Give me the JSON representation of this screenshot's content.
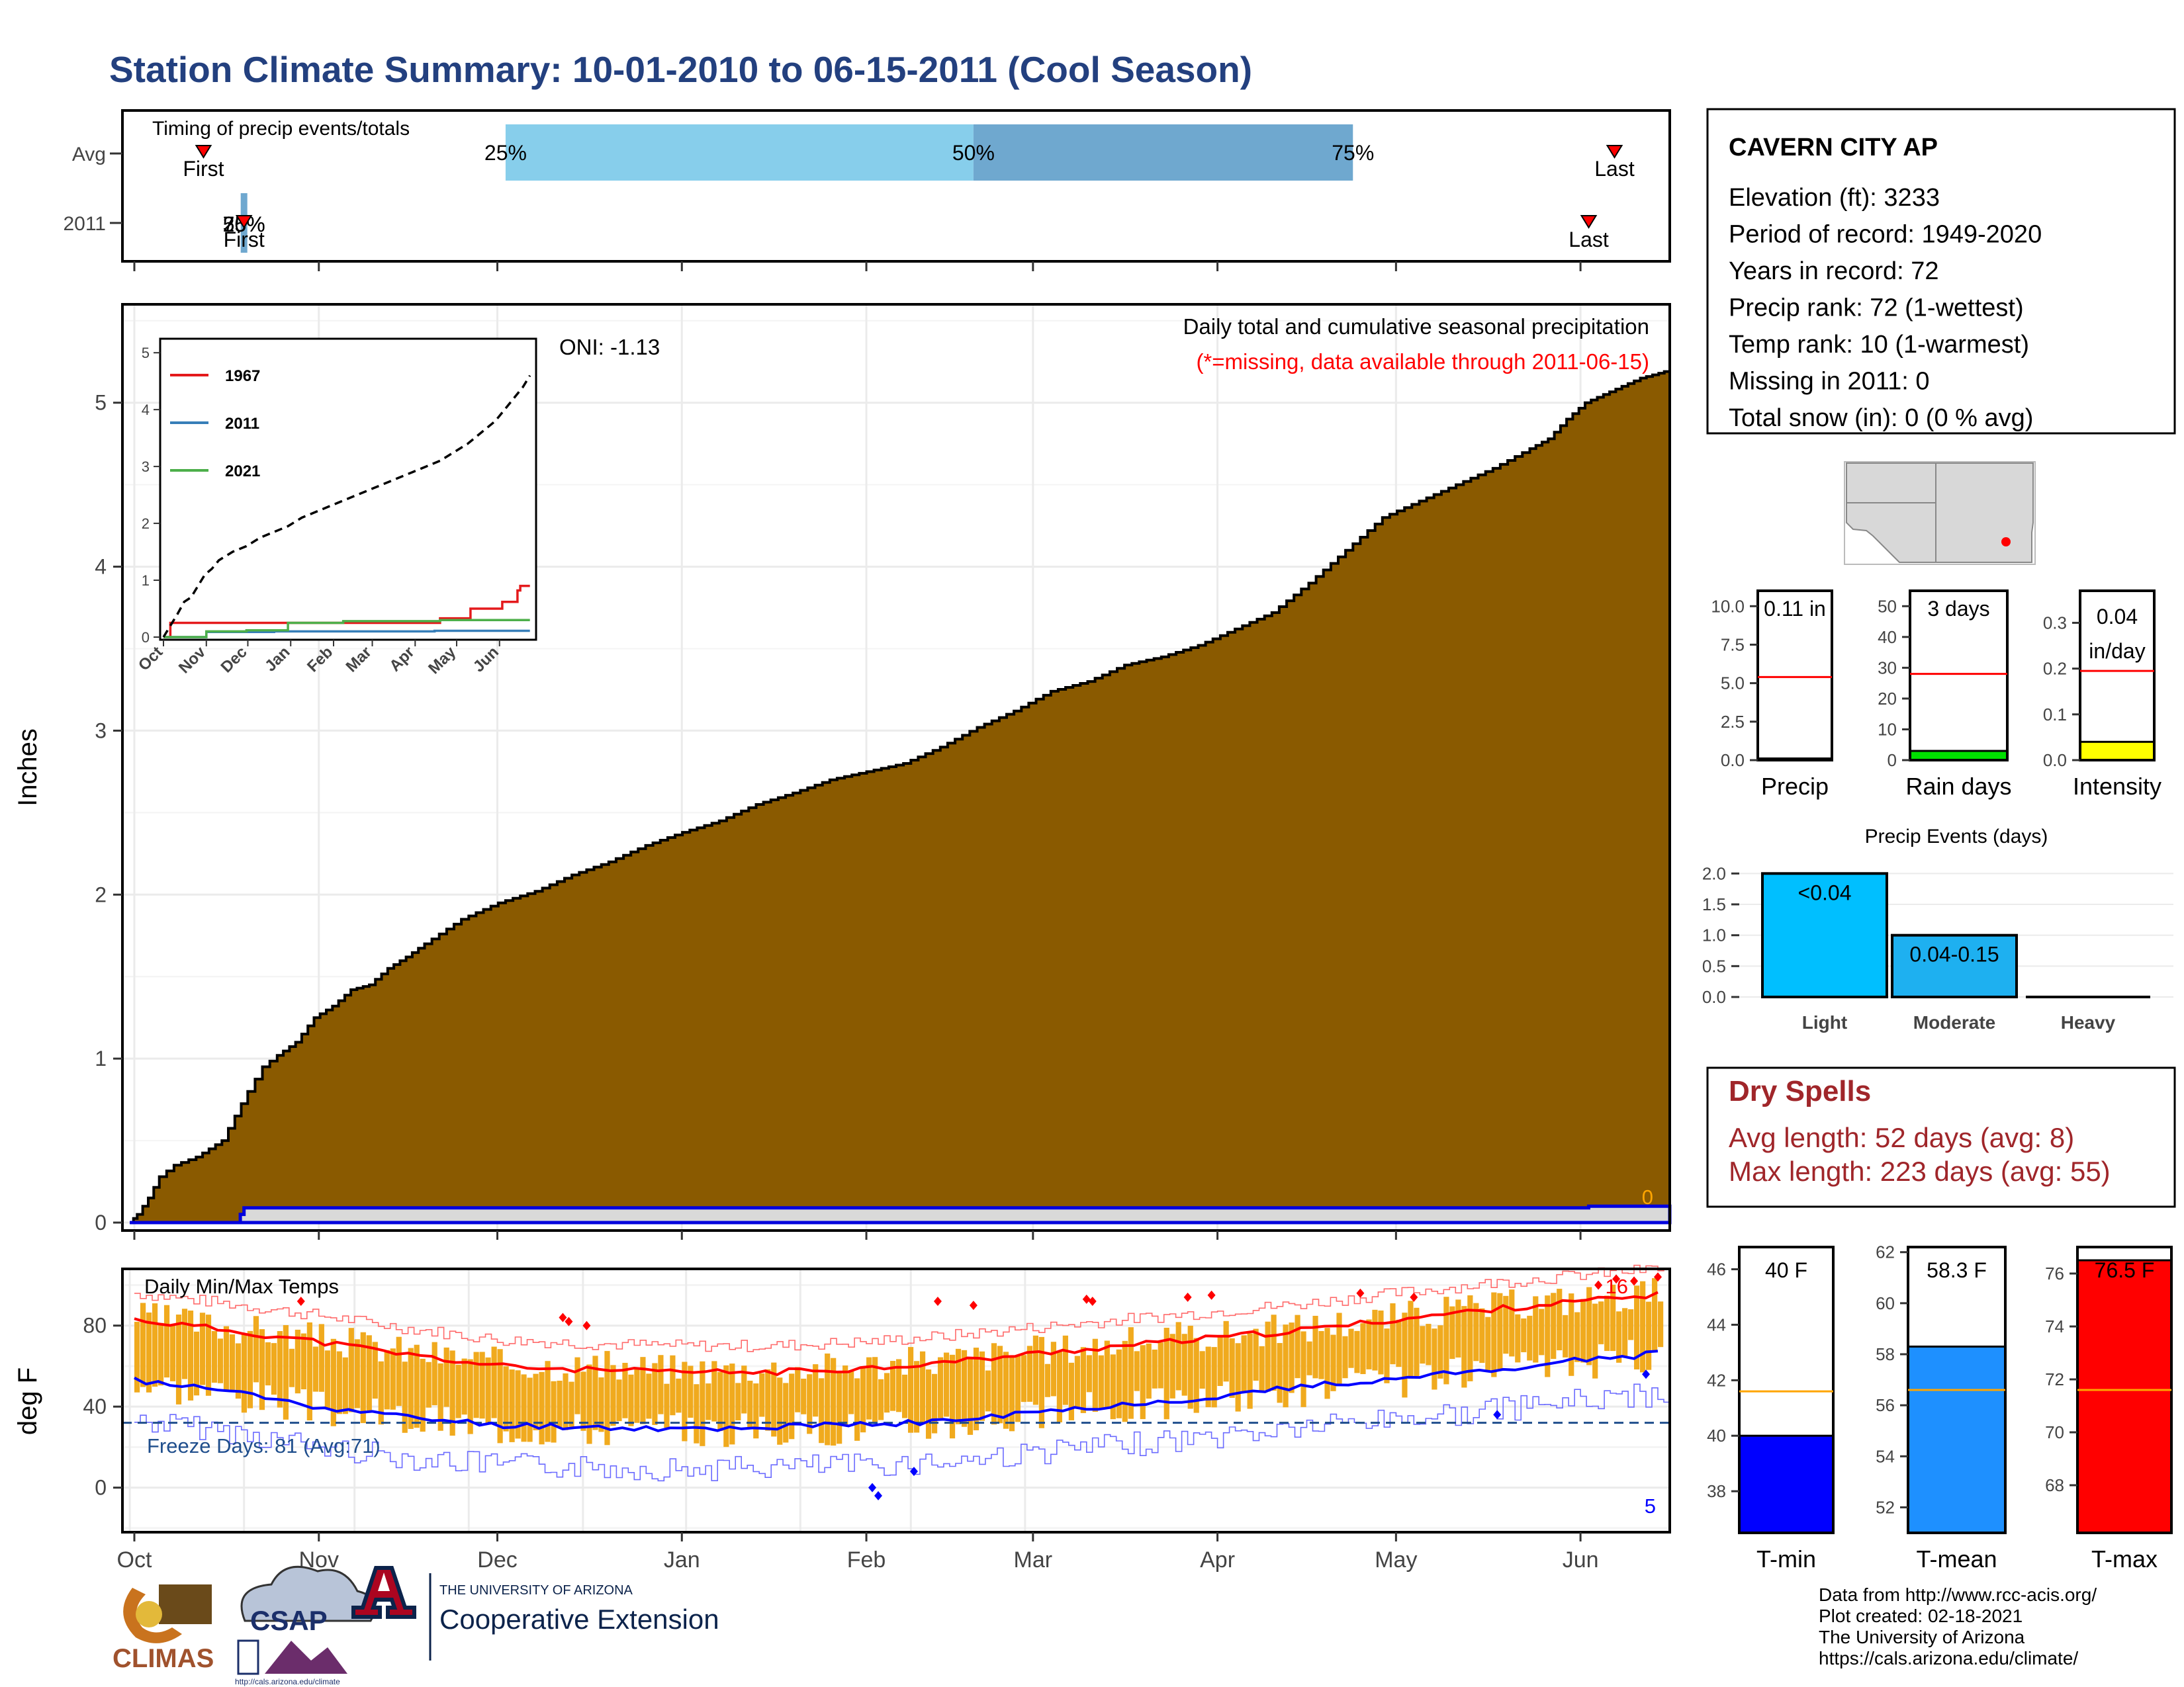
{
  "page": {
    "title": "Station Climate Summary: 10-01-2010 to 06-15-2011 (Cool Season)",
    "footer": [
      "Data from http://www.rcc-acis.org/",
      "Plot created: 02-18-2021",
      "The University of Arizona",
      "https://cals.arizona.edu/climate/"
    ]
  },
  "logos": {
    "climas": "CLIMAS",
    "csap": "CSAP",
    "csap_url": "http://cals.arizona.edu/climate",
    "ua_line1": "THE UNIVERSITY OF ARIZONA",
    "ua_line2": "Cooperative Extension"
  },
  "station_info": {
    "name": "CAVERN CITY AP",
    "lines": [
      "Elevation (ft): 3233",
      "Period of record: 1949-2020",
      "Years in record: 72",
      "Precip rank: 72 (1-wettest)",
      "Temp rank: 10 (1-warmest)",
      "Missing in 2011: 0",
      "Total snow (in): 0 (0 % avg)"
    ]
  },
  "dry_spells": {
    "title": "Dry Spells",
    "avg": "Avg length: 52 days (avg: 8)",
    "max": "Max length: 223 days (avg: 55)"
  },
  "colors": {
    "title": "#23407f",
    "precip_fill": "#8a5a00",
    "light_blue": "#87ceeb",
    "mid_blue": "#6fa8cf",
    "tmax": "#ff0000",
    "tmin": "#0000ff",
    "temp_bar": "#f0aa1e",
    "freeze": "#1f4e8c",
    "dry": "#a0262a"
  },
  "chart_data": [
    {
      "type": "timeline",
      "name": "timing",
      "title": "Timing of precip events/totals",
      "rows": [
        "Avg",
        "2011"
      ],
      "avg": {
        "first_label": "First",
        "last_label": "Last",
        "p25": "25%",
        "p50": "50%",
        "p75": "75%",
        "first_day": 20,
        "p25_day": 102,
        "p50_day": 229,
        "p75_day": 332,
        "last_day": 403
      },
      "y2011": {
        "first_label": "First",
        "last_label": "Last",
        "overlap_label": "25%",
        "first_day": 31,
        "pct_day": 31,
        "last_day": 396
      }
    },
    {
      "type": "area",
      "name": "cumulative-precip",
      "title": "Daily total and cumulative seasonal precipitation",
      "subtitle": "(*=missing, data available through 2011-06-15)",
      "oni": "ONI: -1.13",
      "ylabel": "Inches",
      "ylim": [
        0,
        5.6
      ],
      "yticks": [
        0,
        1,
        2,
        3,
        4,
        5
      ],
      "x_days": [
        0,
        2,
        5,
        8,
        12,
        18,
        25,
        32,
        36,
        40,
        45,
        50,
        55,
        60,
        65,
        70,
        75,
        80,
        90,
        100,
        110,
        120,
        130,
        140,
        150,
        160,
        170,
        180,
        190,
        200,
        210,
        220,
        230,
        240,
        250,
        260,
        270,
        280,
        290,
        300,
        310,
        320,
        330,
        340,
        350,
        360,
        370,
        380,
        385,
        390,
        395,
        400,
        405,
        410,
        415,
        418
      ],
      "avg_cum": [
        0,
        0.05,
        0.15,
        0.28,
        0.35,
        0.4,
        0.5,
        0.8,
        0.95,
        1.02,
        1.1,
        1.25,
        1.32,
        1.42,
        1.45,
        1.55,
        1.62,
        1.7,
        1.85,
        1.95,
        2.02,
        2.12,
        2.2,
        2.3,
        2.38,
        2.45,
        2.55,
        2.62,
        2.7,
        2.75,
        2.8,
        2.9,
        3.02,
        3.12,
        3.24,
        3.3,
        3.4,
        3.45,
        3.52,
        3.62,
        3.72,
        3.9,
        4.1,
        4.3,
        4.4,
        4.5,
        4.6,
        4.72,
        4.78,
        4.9,
        5.0,
        5.05,
        5.1,
        5.15,
        5.18,
        5.2
      ],
      "obs_label": "0",
      "obs_x": [
        0,
        28,
        30,
        31,
        396,
        418
      ],
      "obs_y": [
        0,
        0,
        0.05,
        0.09,
        0.1,
        0.11
      ]
    },
    {
      "type": "line",
      "name": "inset-cumulative",
      "legend": [
        "1967",
        "2011",
        "2021"
      ],
      "legend_colors": [
        "#e41a1c",
        "#377eb8",
        "#4daf4a"
      ],
      "xticks": [
        "Oct",
        "Nov",
        "Dec",
        "Jan",
        "Feb",
        "Mar",
        "Apr",
        "May",
        "Jun"
      ],
      "ylim": [
        0,
        5.2
      ],
      "yticks": [
        0,
        1,
        2,
        3,
        4,
        5
      ],
      "series": [
        {
          "name": "1967",
          "color": "#e41a1c",
          "x": [
            0,
            5,
            60,
            190,
            200,
            222,
            240,
            245,
            250,
            256,
            258,
            265
          ],
          "y": [
            0,
            0.25,
            0.25,
            0.25,
            0.33,
            0.5,
            0.5,
            0.62,
            0.62,
            0.82,
            0.9,
            0.9
          ]
        },
        {
          "name": "2011",
          "color": "#377eb8",
          "x": [
            0,
            31,
            80,
            196,
            265
          ],
          "y": [
            0,
            0.09,
            0.1,
            0.11,
            0.11
          ]
        },
        {
          "name": "2021",
          "color": "#4daf4a",
          "x": [
            0,
            31,
            60,
            90,
            130,
            200,
            265
          ],
          "y": [
            0,
            0.1,
            0.12,
            0.25,
            0.28,
            0.3,
            0.3
          ]
        },
        {
          "name": "avg",
          "color": "#000000",
          "x": [
            0,
            5,
            10,
            15,
            20,
            25,
            30,
            35,
            40,
            50,
            60,
            70,
            80,
            90,
            100,
            110,
            120,
            130,
            140,
            150,
            160,
            170,
            180,
            190,
            200,
            210,
            220,
            230,
            240,
            250,
            260,
            265
          ],
          "y": [
            0,
            0.2,
            0.4,
            0.62,
            0.7,
            0.9,
            1.1,
            1.2,
            1.35,
            1.5,
            1.6,
            1.75,
            1.85,
            1.95,
            2.1,
            2.2,
            2.3,
            2.4,
            2.5,
            2.6,
            2.7,
            2.8,
            2.9,
            3.0,
            3.1,
            3.25,
            3.4,
            3.6,
            3.8,
            4.1,
            4.4,
            4.6
          ]
        }
      ]
    },
    {
      "type": "line",
      "name": "daily-temps",
      "title": "Daily Min/Max Temps",
      "ylabel": "deg F",
      "ylim": [
        -22,
        108
      ],
      "yticks": [
        0,
        40,
        80
      ],
      "xticks": [
        "Oct",
        "Nov",
        "Dec",
        "Jan",
        "Feb",
        "Mar",
        "Apr",
        "May",
        "Jun"
      ],
      "xtick_days": [
        0,
        31,
        61,
        92,
        123,
        151,
        182,
        212,
        243
      ],
      "freeze_label": "Freeze Days: 81 (Avg:71)",
      "freeze_temp": 32,
      "tmax_record_count": "16",
      "tmin_record_count": "5",
      "tmax_avg_x": [
        0,
        15,
        31,
        45,
        61,
        77,
        92,
        107,
        123,
        137,
        151,
        166,
        182,
        197,
        212,
        228,
        243,
        256
      ],
      "tmax_avg_y": [
        83,
        78,
        72,
        66,
        60,
        58,
        57,
        57,
        59,
        62,
        66,
        70,
        74,
        78,
        83,
        88,
        92,
        95
      ],
      "tmin_avg_x": [
        0,
        15,
        31,
        45,
        61,
        77,
        92,
        107,
        123,
        137,
        151,
        166,
        182,
        197,
        212,
        228,
        243,
        256
      ],
      "tmin_avg_y": [
        53,
        48,
        40,
        35,
        31,
        30,
        29,
        30,
        31,
        33,
        37,
        41,
        45,
        50,
        54,
        58,
        63,
        66
      ]
    },
    {
      "type": "bar",
      "name": "precip-gauge",
      "label": "Precip",
      "value_label": "0.11 in",
      "value": 0.11,
      "avg": 5.4,
      "ylim": [
        0,
        11
      ],
      "yticks": [
        0.0,
        2.5,
        5.0,
        7.5,
        10.0
      ],
      "ytick_labels": [
        "0.0",
        "2.5",
        "5.0",
        "7.5",
        "10.0"
      ],
      "fill": "#ffffff"
    },
    {
      "type": "bar",
      "name": "raindays-gauge",
      "label": "Rain days",
      "value_label": "3 days",
      "value": 3,
      "avg": 28,
      "ylim": [
        0,
        55
      ],
      "yticks": [
        0,
        10,
        20,
        30,
        40,
        50
      ],
      "ytick_labels": [
        "0",
        "10",
        "20",
        "30",
        "40",
        "50"
      ],
      "fill": "#00e000"
    },
    {
      "type": "bar",
      "name": "intensity-gauge",
      "label": "Intensity",
      "value_label": "0.04",
      "value_label2": "in/day",
      "value": 0.04,
      "avg": 0.195,
      "ylim": [
        0,
        0.37
      ],
      "yticks": [
        0.0,
        0.1,
        0.2,
        0.3
      ],
      "ytick_labels": [
        "0.0",
        "0.1",
        "0.2",
        "0.3"
      ],
      "fill": "#ffff00"
    },
    {
      "type": "bar",
      "name": "precip-events",
      "title": "Precip Events (days)",
      "categories": [
        "Light",
        "Moderate",
        "Heavy"
      ],
      "bar_labels": [
        "<0.04",
        "0.04-0.15",
        ""
      ],
      "values": [
        2,
        1,
        0
      ],
      "ylim": [
        0,
        2.1
      ],
      "yticks": [
        0.0,
        0.5,
        1.0,
        1.5,
        2.0
      ],
      "ytick_labels": [
        "0.0",
        "0.5",
        "1.0",
        "1.5",
        "2.0"
      ]
    },
    {
      "type": "bar",
      "name": "tmin-gauge",
      "label": "T-min",
      "value_label": "40 F",
      "value": 40,
      "avg": 41.6,
      "ylim": [
        36.5,
        46.8
      ],
      "yticks": [
        38,
        40,
        42,
        44,
        46
      ],
      "fill": "#0000ff"
    },
    {
      "type": "bar",
      "name": "tmean-gauge",
      "label": "T-mean",
      "value_label": "58.3 F",
      "value": 58.3,
      "avg": 56.6,
      "ylim": [
        51,
        62.2
      ],
      "yticks": [
        52,
        54,
        56,
        58,
        60,
        62
      ],
      "fill": "#1e90ff"
    },
    {
      "type": "bar",
      "name": "tmax-gauge",
      "label": "T-max",
      "value_label": "76.5 F",
      "value": 76.5,
      "avg": 71.6,
      "ylim": [
        66.2,
        77
      ],
      "yticks": [
        68,
        70,
        72,
        74,
        76
      ],
      "fill": "#ff0000"
    }
  ]
}
